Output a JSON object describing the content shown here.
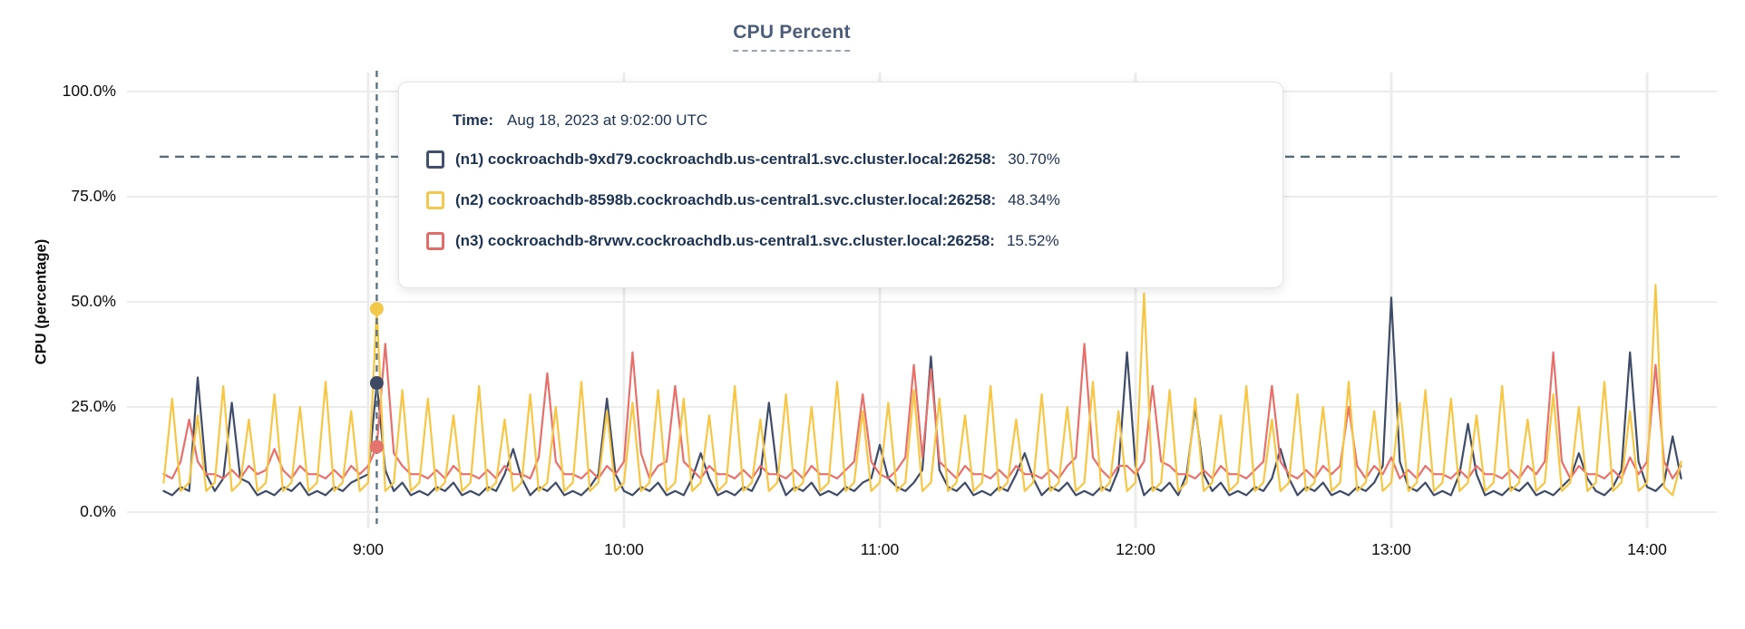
{
  "header": {
    "title": "CPU Percent"
  },
  "axes": {
    "y_label": "CPU (percentage)"
  },
  "tooltip": {
    "time_label": "Time:",
    "time_value": "Aug 18, 2023 at 9:02:00 UTC",
    "rows": [
      {
        "node": "n1",
        "label": "(n1) cockroachdb-9xd79.cockroachdb.us-central1.svc.cluster.local:26258:",
        "value": "30.70%",
        "color": "#42506e"
      },
      {
        "node": "n2",
        "label": "(n2) cockroachdb-8598b.cockroachdb.us-central1.svc.cluster.local:26258:",
        "value": "48.34%",
        "color": "#f2c94c"
      },
      {
        "node": "n3",
        "label": "(n3) cockroachdb-8rvwv.cockroachdb.us-central1.svc.cluster.local:26258:",
        "value": "15.52%",
        "color": "#e26d68"
      }
    ]
  },
  "chart_data": {
    "type": "line",
    "title": "CPU Percent",
    "xlabel": "",
    "ylabel": "CPU (percentage)",
    "ylim": [
      0,
      100
    ],
    "grid": true,
    "y_ticks": [
      {
        "value": 0,
        "label": "0.0%"
      },
      {
        "value": 25,
        "label": "25.0%"
      },
      {
        "value": 50,
        "label": "50.0%"
      },
      {
        "value": 75,
        "label": "75.0%"
      },
      {
        "value": 100,
        "label": "100.0%"
      }
    ],
    "x_ticks": [
      {
        "minutes": 0,
        "label": "9:00"
      },
      {
        "minutes": 60,
        "label": "10:00"
      },
      {
        "minutes": 120,
        "label": "11:00"
      },
      {
        "minutes": 180,
        "label": "12:00"
      },
      {
        "minutes": 240,
        "label": "13:00"
      },
      {
        "minutes": 300,
        "label": "14:00"
      }
    ],
    "x_minutes_start": -48,
    "x_minutes_step": 2,
    "threshold_percent": 84.5,
    "crosshair": {
      "time": "Aug 18, 2023 at 9:02:00 UTC",
      "minutes_after_900": 2,
      "points": [
        {
          "series": "n2",
          "percent": 48.34,
          "color": "#f2c84b"
        },
        {
          "series": "n1",
          "percent": 30.7,
          "color": "#3e4a63"
        },
        {
          "series": "n3",
          "percent": 15.52,
          "color": "#e5736e"
        }
      ]
    },
    "series": [
      {
        "id": "n1",
        "name": "cockroachdb-9xd79.cockroachdb.us-central1.svc.cluster.local:26258",
        "color": "#3f4c68",
        "values": [
          5,
          4,
          6,
          5,
          32,
          9,
          5,
          8,
          26,
          8,
          7,
          4,
          5,
          4,
          6,
          5,
          7,
          4,
          5,
          4,
          6,
          5,
          7,
          8,
          9,
          30.7,
          10,
          5,
          7,
          4,
          5,
          4,
          6,
          5,
          7,
          4,
          5,
          4,
          6,
          5,
          9,
          15,
          8,
          4,
          6,
          5,
          7,
          4,
          5,
          4,
          6,
          9,
          27,
          9,
          5,
          4,
          6,
          5,
          7,
          4,
          5,
          4,
          8,
          14,
          8,
          4,
          5,
          4,
          6,
          5,
          9,
          26,
          9,
          4,
          6,
          5,
          7,
          4,
          5,
          4,
          6,
          5,
          7,
          8,
          16,
          8,
          6,
          5,
          7,
          10,
          37,
          10,
          6,
          5,
          7,
          4,
          5,
          4,
          6,
          5,
          9,
          14,
          8,
          4,
          6,
          5,
          7,
          4,
          5,
          4,
          6,
          5,
          10,
          38,
          11,
          4,
          6,
          5,
          7,
          4,
          9,
          25,
          9,
          5,
          7,
          4,
          5,
          4,
          6,
          5,
          8,
          15,
          8,
          4,
          6,
          5,
          7,
          4,
          5,
          4,
          6,
          5,
          7,
          11,
          51,
          12,
          6,
          5,
          7,
          4,
          5,
          4,
          9,
          21,
          9,
          4,
          5,
          4,
          6,
          5,
          7,
          4,
          5,
          4,
          6,
          8,
          14,
          8,
          5,
          4,
          6,
          10,
          38,
          12,
          6,
          5,
          7,
          18,
          8
        ]
      },
      {
        "id": "n2",
        "name": "cockroachdb-8598b.cockroachdb.us-central1.svc.cluster.local:26258",
        "color": "#f6c644",
        "values": [
          7,
          27,
          5,
          7,
          23,
          5,
          7,
          30,
          5,
          7,
          22,
          5,
          7,
          28,
          5,
          7,
          25,
          5,
          7,
          31,
          5,
          7,
          24,
          5,
          7,
          48.34,
          5,
          7,
          29,
          5,
          7,
          27,
          5,
          7,
          23,
          5,
          7,
          30,
          5,
          7,
          22,
          5,
          7,
          28,
          5,
          7,
          25,
          5,
          7,
          31,
          5,
          7,
          24,
          5,
          7,
          26,
          5,
          7,
          29,
          5,
          7,
          27,
          5,
          7,
          23,
          5,
          7,
          30,
          5,
          7,
          22,
          5,
          7,
          28,
          5,
          7,
          25,
          5,
          7,
          31,
          5,
          7,
          24,
          5,
          7,
          26,
          5,
          7,
          29,
          5,
          7,
          27,
          5,
          7,
          23,
          5,
          7,
          30,
          5,
          7,
          22,
          5,
          7,
          28,
          5,
          7,
          25,
          5,
          7,
          31,
          5,
          7,
          24,
          5,
          7,
          52,
          5,
          7,
          29,
          5,
          7,
          27,
          5,
          7,
          23,
          5,
          7,
          30,
          5,
          7,
          22,
          5,
          7,
          28,
          5,
          7,
          25,
          5,
          7,
          31,
          5,
          7,
          24,
          5,
          7,
          26,
          5,
          7,
          29,
          5,
          7,
          27,
          5,
          7,
          23,
          5,
          7,
          30,
          5,
          7,
          22,
          5,
          7,
          28,
          5,
          7,
          25,
          5,
          7,
          31,
          5,
          7,
          24,
          5,
          7,
          54,
          6,
          4,
          12
        ]
      },
      {
        "id": "n3",
        "name": "cockroachdb-8rvwv.cockroachdb.us-central1.svc.cluster.local:26258",
        "color": "#e7706b",
        "values": [
          9,
          8,
          12,
          22,
          12,
          9,
          9,
          8,
          10,
          8,
          11,
          9,
          10,
          15,
          10,
          8,
          11,
          9,
          9,
          8,
          10,
          8,
          11,
          9,
          11,
          15.52,
          40,
          14,
          11,
          9,
          9,
          8,
          10,
          8,
          11,
          9,
          9,
          8,
          10,
          8,
          11,
          9,
          9,
          8,
          13,
          33,
          12,
          9,
          9,
          8,
          10,
          8,
          11,
          9,
          12,
          38,
          14,
          8,
          11,
          12,
          30,
          12,
          10,
          8,
          11,
          9,
          9,
          8,
          10,
          8,
          11,
          9,
          9,
          8,
          10,
          8,
          11,
          9,
          9,
          8,
          10,
          12,
          28,
          12,
          9,
          8,
          10,
          13,
          35,
          13,
          34,
          12,
          10,
          8,
          11,
          9,
          9,
          8,
          10,
          8,
          11,
          9,
          9,
          8,
          10,
          8,
          11,
          13,
          40,
          13,
          10,
          8,
          11,
          11,
          9,
          12,
          30,
          12,
          11,
          9,
          9,
          8,
          10,
          8,
          11,
          9,
          9,
          8,
          10,
          12,
          30,
          12,
          9,
          8,
          10,
          8,
          11,
          9,
          11,
          25,
          11,
          8,
          11,
          9,
          13,
          8,
          10,
          8,
          11,
          9,
          9,
          8,
          10,
          8,
          11,
          9,
          9,
          8,
          10,
          8,
          11,
          9,
          12,
          38,
          12,
          8,
          11,
          9,
          9,
          8,
          10,
          8,
          13,
          9,
          12,
          35,
          12,
          8,
          11
        ]
      }
    ]
  },
  "colors": {
    "grid": "#ececec",
    "threshold_dash": "#566b76",
    "crosshair_dash": "#5c7484",
    "title": "#4c5d7a",
    "tooltip_text": "#1d3354"
  }
}
